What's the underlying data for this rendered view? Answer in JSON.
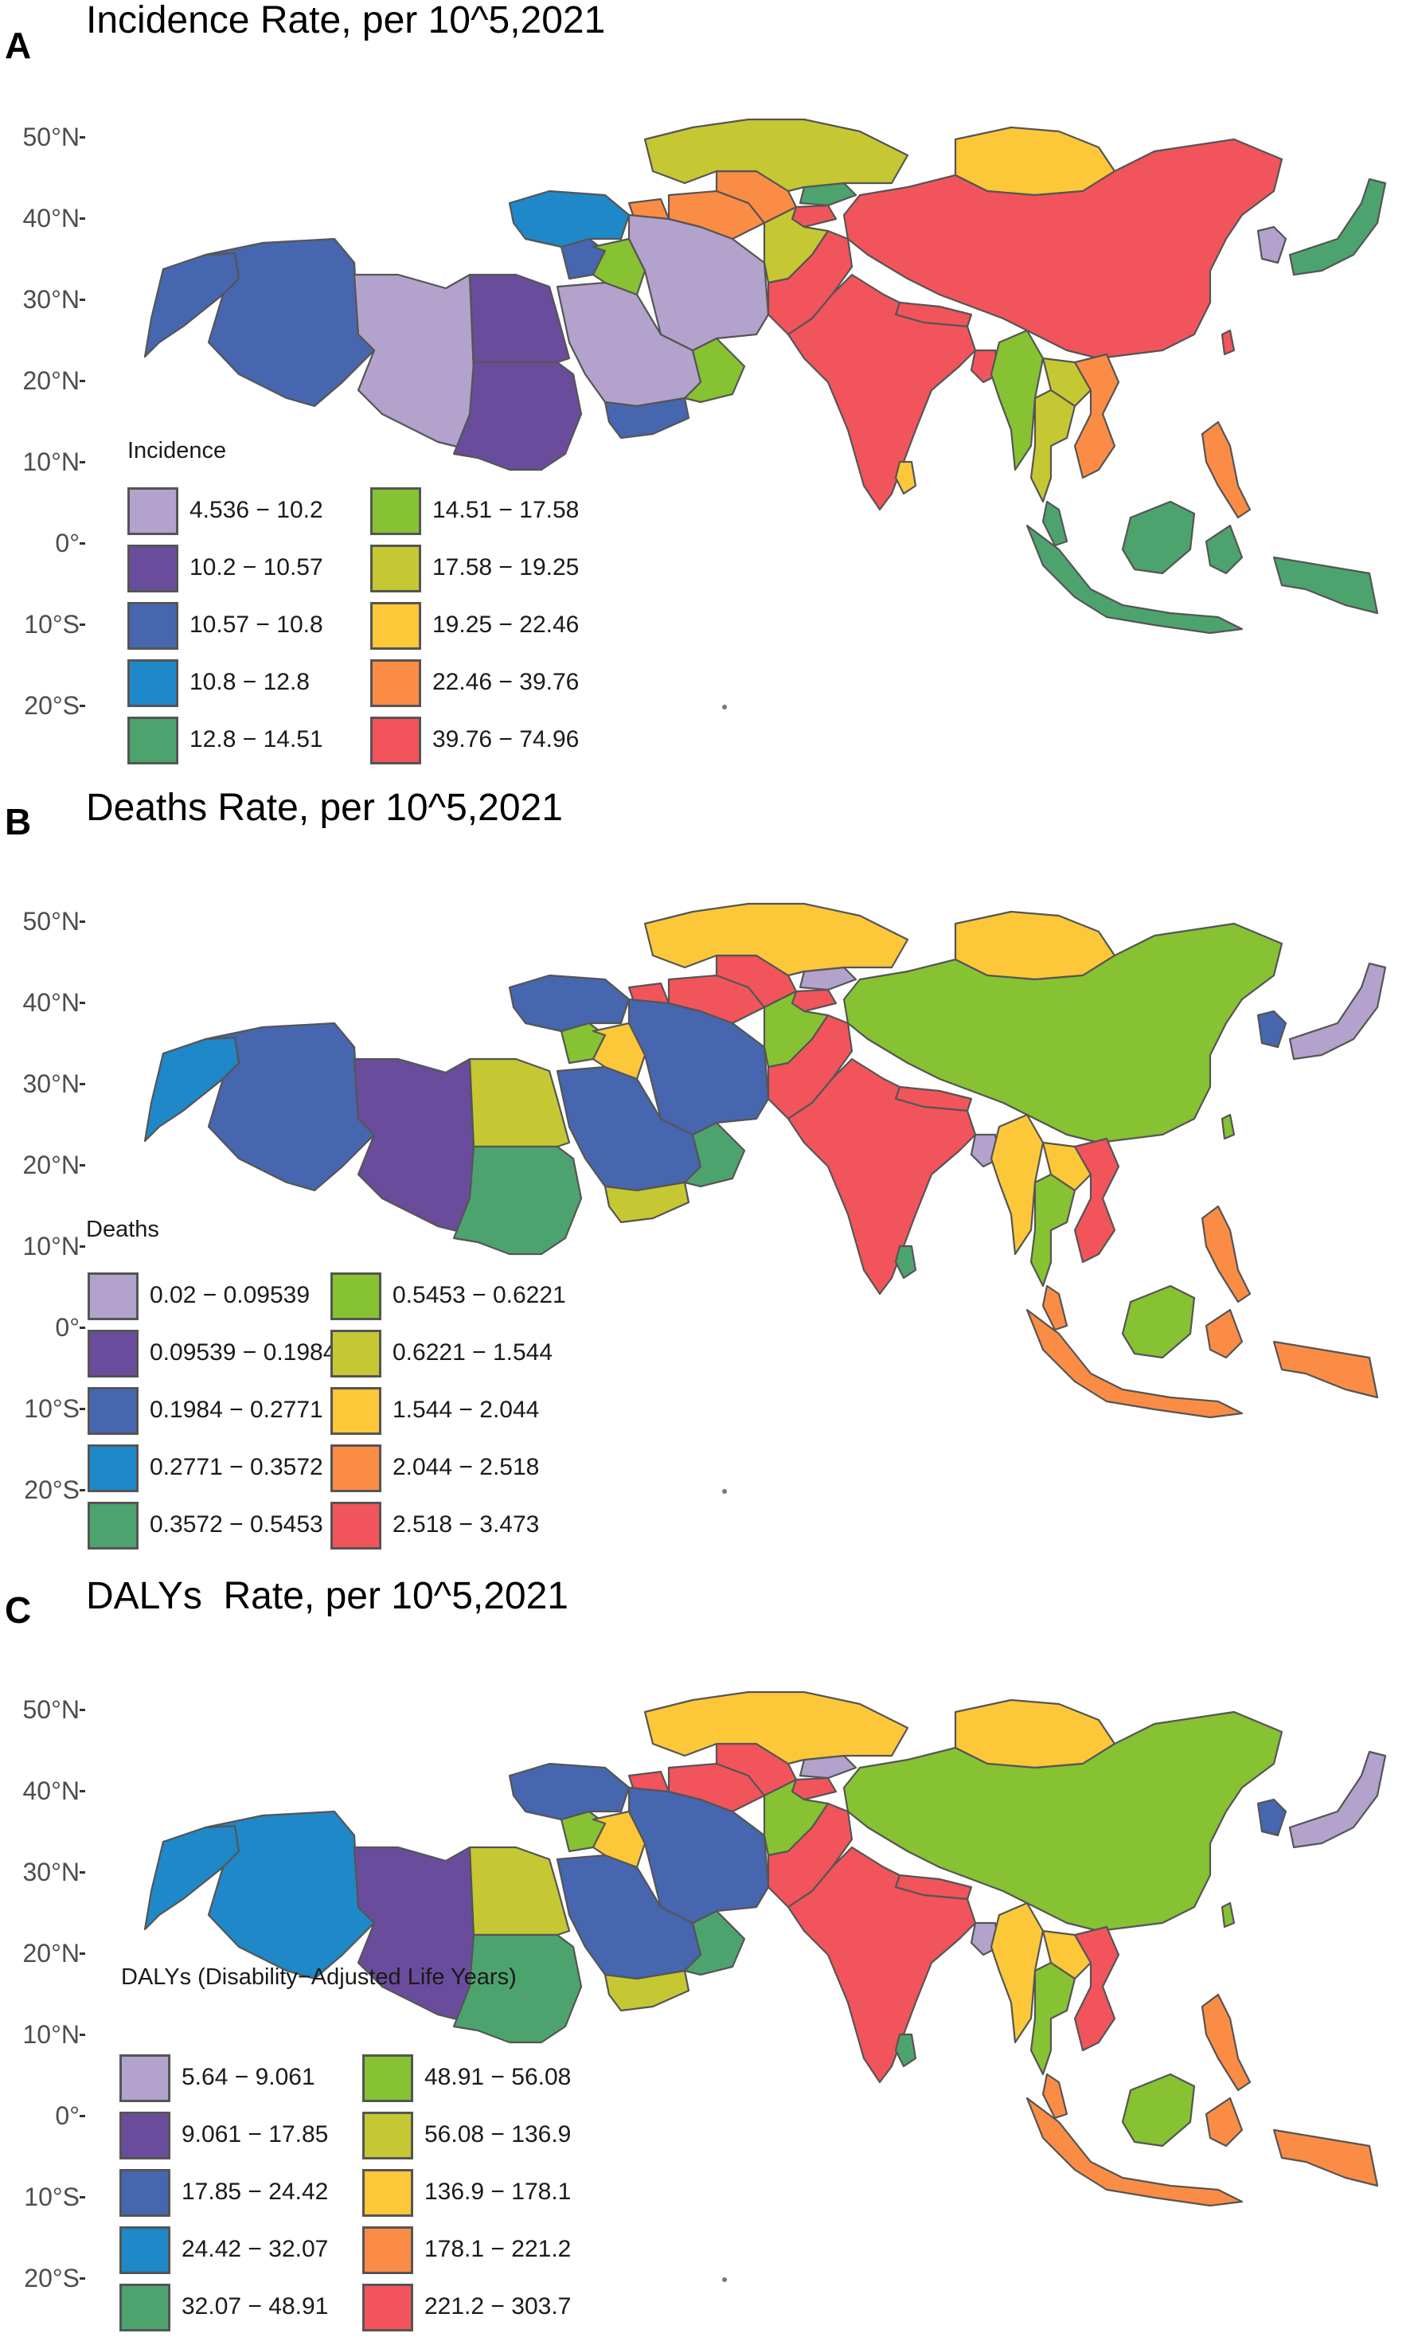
{
  "latitude_labels": [
    "50°N",
    "40°N",
    "30°N",
    "20°N",
    "10°N",
    "0°",
    "10°S",
    "20°S"
  ],
  "palette": [
    "#B3A2CC",
    "#6A4C9C",
    "#4666B0",
    "#1E88C8",
    "#4DA36E",
    "#86C232",
    "#C5C832",
    "#FDC73A",
    "#FB8C45",
    "#F2545B"
  ],
  "panels": [
    {
      "letter": "A",
      "title": "Incidence Rate, per 10^5,2021",
      "legend_title": "Incidence",
      "legend": [
        "4.536 − 10.2",
        "10.2 − 10.57",
        "10.57 − 10.8",
        "10.8 − 12.8",
        "12.8 − 14.51",
        "14.51 − 17.58",
        "17.58 − 19.25",
        "19.25 − 22.46",
        "22.46 − 39.76",
        "39.76 − 74.96"
      ],
      "regions": {
        "morocco": 2,
        "algeria": 2,
        "libya": 0,
        "egypt": 1,
        "sudan": 1,
        "arabia": 0,
        "yemen": 2,
        "oman": 5,
        "iraq": 5,
        "syria": 2,
        "turkey": 3,
        "iran": 0,
        "afghanistan": 6,
        "pakistan": 9,
        "india": 9,
        "srilanka": 7,
        "nepal": 9,
        "bangladesh": 9,
        "myanmar": 5,
        "thailand": 6,
        "laos": 6,
        "vietnam": 8,
        "kazakhstan": 6,
        "uzbekistan": 8,
        "turkmenistan": 8,
        "kyrgyzstan": 4,
        "tajikistan": 9,
        "caucasus": 8,
        "mongolia": 7,
        "china": 9,
        "korea": 0,
        "japan": 4,
        "philippines": 8,
        "malaysia": 4,
        "indonesia": 4,
        "newguinea": 4,
        "borneo": 4,
        "taiwan": 9
      }
    },
    {
      "letter": "B",
      "title": "Deaths Rate, per 10^5,2021",
      "legend_title": "Deaths",
      "legend": [
        "0.02 − 0.09539",
        "0.09539 − 0.1984",
        "0.1984 − 0.2771",
        "0.2771 − 0.3572",
        "0.3572 − 0.5453",
        "0.5453 − 0.6221",
        "0.6221 − 1.544",
        "1.544 − 2.044",
        "2.044 − 2.518",
        "2.518 − 3.473"
      ],
      "regions": {
        "morocco": 3,
        "algeria": 2,
        "libya": 1,
        "egypt": 6,
        "sudan": 4,
        "arabia": 2,
        "yemen": 6,
        "oman": 4,
        "iraq": 7,
        "syria": 5,
        "turkey": 2,
        "iran": 2,
        "afghanistan": 5,
        "pakistan": 9,
        "india": 9,
        "srilanka": 4,
        "nepal": 9,
        "bangladesh": 0,
        "myanmar": 7,
        "thailand": 5,
        "laos": 7,
        "vietnam": 9,
        "kazakhstan": 7,
        "uzbekistan": 9,
        "turkmenistan": 9,
        "kyrgyzstan": 0,
        "tajikistan": 9,
        "caucasus": 9,
        "mongolia": 7,
        "china": 5,
        "korea": 2,
        "japan": 0,
        "philippines": 8,
        "malaysia": 8,
        "indonesia": 8,
        "newguinea": 8,
        "borneo": 5,
        "taiwan": 5
      }
    },
    {
      "letter": "C",
      "title": "DALYs  Rate, per 10^5,2021",
      "legend_title": "DALYs (Disability−Adjusted Life Years)",
      "legend": [
        "5.64 − 9.061",
        "9.061 − 17.85",
        "17.85 − 24.42",
        "24.42 − 32.07",
        "32.07 − 48.91",
        "48.91 − 56.08",
        "56.08 − 136.9",
        "136.9 − 178.1",
        "178.1 − 221.2",
        "221.2 − 303.7"
      ],
      "regions": {
        "morocco": 3,
        "algeria": 3,
        "libya": 1,
        "egypt": 6,
        "sudan": 4,
        "arabia": 2,
        "yemen": 6,
        "oman": 4,
        "iraq": 7,
        "syria": 5,
        "turkey": 2,
        "iran": 2,
        "afghanistan": 5,
        "pakistan": 9,
        "india": 9,
        "srilanka": 4,
        "nepal": 9,
        "bangladesh": 0,
        "myanmar": 7,
        "thailand": 5,
        "laos": 7,
        "vietnam": 9,
        "kazakhstan": 7,
        "uzbekistan": 9,
        "turkmenistan": 9,
        "kyrgyzstan": 0,
        "tajikistan": 9,
        "caucasus": 9,
        "mongolia": 7,
        "china": 5,
        "korea": 2,
        "japan": 0,
        "philippines": 8,
        "malaysia": 8,
        "indonesia": 8,
        "newguinea": 8,
        "borneo": 5,
        "taiwan": 5
      }
    }
  ]
}
